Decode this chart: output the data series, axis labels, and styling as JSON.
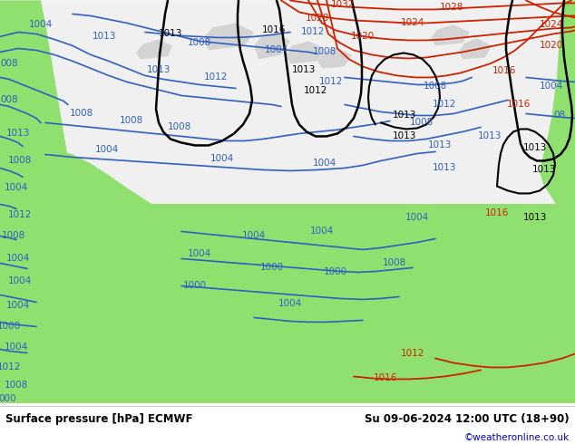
{
  "title_left": "Surface pressure [hPa] ECMWF",
  "title_right": "Su 09-06-2024 12:00 UTC (18+90)",
  "credit": "©weatheronline.co.uk",
  "land_green": "#90e070",
  "sea_white": "#f0f0f0",
  "coast_gray": "#aaaaaa",
  "figsize": [
    6.34,
    4.9
  ],
  "dpi": 100,
  "bottom_bar_color": "#ffffff",
  "blue": "#3060c0",
  "red": "#cc2200",
  "black": "#000000",
  "label_blue": "#3060c0",
  "label_red": "#cc2200",
  "label_black": "#000000"
}
